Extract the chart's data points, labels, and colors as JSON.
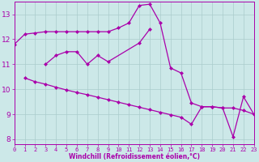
{
  "line1_x": [
    0,
    1,
    2,
    3,
    4,
    5,
    6,
    7,
    8,
    9,
    10,
    11,
    12,
    13,
    14,
    15,
    16,
    17,
    18,
    19,
    20,
    21,
    22,
    23
  ],
  "line1_y": [
    11.8,
    12.2,
    12.25,
    12.3,
    12.3,
    12.3,
    12.3,
    12.3,
    12.3,
    12.3,
    12.45,
    12.65,
    13.35,
    13.4,
    12.65,
    10.85,
    10.65,
    9.45,
    9.3,
    9.3,
    9.25,
    9.25,
    9.15,
    9.0
  ],
  "line2_x": [
    3,
    4,
    5,
    6,
    7,
    8,
    9,
    12,
    13
  ],
  "line2_y": [
    11.0,
    11.35,
    11.5,
    11.5,
    11.0,
    11.35,
    11.1,
    11.85,
    12.4
  ],
  "line3_x": [
    1,
    2,
    3,
    4,
    5,
    6,
    7,
    8,
    9,
    10,
    11,
    12,
    13,
    14,
    15,
    16,
    17,
    18,
    19,
    20,
    21,
    22,
    23
  ],
  "line3_y": [
    10.45,
    10.3,
    10.2,
    10.08,
    9.97,
    9.87,
    9.78,
    9.68,
    9.58,
    9.48,
    9.38,
    9.28,
    9.18,
    9.08,
    8.98,
    8.88,
    8.6,
    9.3,
    9.3,
    9.25,
    8.1,
    9.7,
    9.0
  ],
  "color": "#aa00aa",
  "bg_color": "#cce8e8",
  "xlabel": "Windchill (Refroidissement éolien,°C)",
  "xlim": [
    0,
    23
  ],
  "ylim": [
    7.8,
    13.5
  ],
  "xticks": [
    0,
    1,
    2,
    3,
    4,
    5,
    6,
    7,
    8,
    9,
    10,
    11,
    12,
    13,
    14,
    15,
    16,
    17,
    18,
    19,
    20,
    21,
    22,
    23
  ],
  "yticks": [
    8,
    9,
    10,
    11,
    12,
    13
  ],
  "grid_color": "#aacccc",
  "markersize": 2.5,
  "linewidth": 0.9
}
